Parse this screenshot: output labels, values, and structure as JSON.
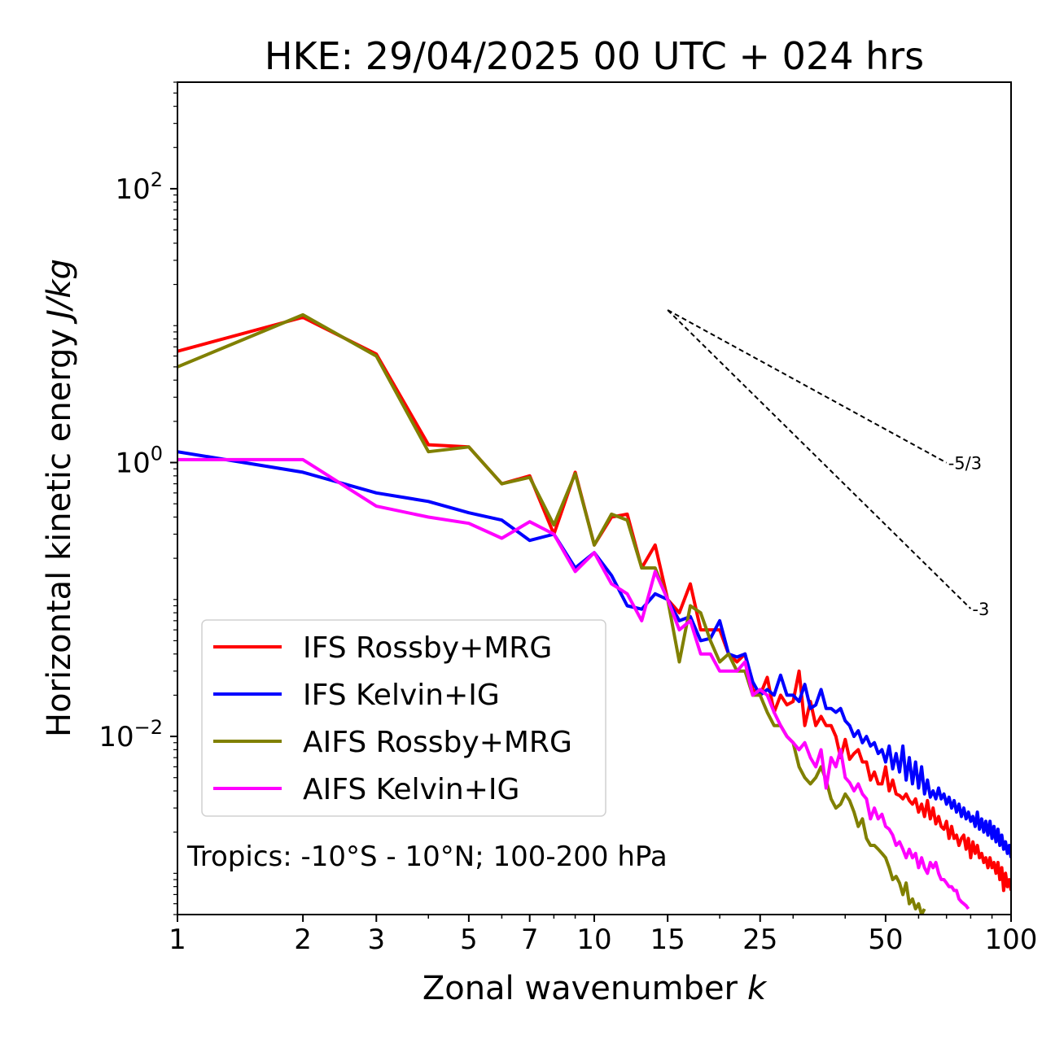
{
  "chart_data": {
    "type": "line",
    "title": "HKE: 29/04/2025 00 UTC + 024 hrs",
    "xlabel": "Zonal wavenumber",
    "xlabel_var": "k",
    "ylabel": "Horizontal kinetic energy",
    "ylabel_unit": "J/kg",
    "xscale": "log",
    "yscale": "log",
    "xlim": [
      1,
      100
    ],
    "ylim": [
      0.0005,
      600
    ],
    "xticks": [
      1,
      2,
      3,
      5,
      7,
      10,
      15,
      25,
      50,
      100
    ],
    "xtick_labels": [
      "1",
      "2",
      "3",
      "5",
      "7",
      "10",
      "15",
      "25",
      "50",
      "100"
    ],
    "yticks": [
      0.01,
      1,
      100
    ],
    "ytick_labels": [
      {
        "base": "10",
        "exp": "−2"
      },
      {
        "base": "10",
        "exp": "0"
      },
      {
        "base": "10",
        "exp": "2"
      }
    ],
    "legend_position": "lower-left",
    "annotation": "Tropics: -10°S - 10°N; 100-200 hPa",
    "reference_lines": [
      {
        "label": "-5/3",
        "slope": -1.6667,
        "x": [
          15,
          70
        ],
        "y_start": 13.0
      },
      {
        "label": "-3",
        "slope": -3,
        "x": [
          15,
          80
        ],
        "y_start": 13.0
      }
    ],
    "series": [
      {
        "name": "IFS Rossby+MRG",
        "color": "#ff0000",
        "x": [
          1,
          2,
          3,
          4,
          5,
          6,
          7,
          8,
          9,
          10,
          11,
          12,
          13,
          14,
          15,
          16,
          17,
          18,
          19,
          20,
          21,
          22,
          23,
          24,
          25,
          26,
          27,
          28,
          29,
          30,
          31,
          32,
          33,
          34,
          35,
          36,
          37,
          38,
          39,
          40,
          41,
          42,
          43,
          44,
          45,
          46,
          47,
          48,
          49,
          50,
          51,
          52,
          53,
          54,
          55,
          56,
          57,
          58,
          59,
          60,
          61,
          62,
          63,
          64,
          65,
          66,
          67,
          68,
          69,
          70,
          71,
          72,
          73,
          74,
          75,
          76,
          77,
          78,
          79,
          80,
          81,
          82,
          83,
          84,
          85,
          86,
          87,
          88,
          89,
          90,
          91,
          92,
          93,
          94,
          95,
          96,
          97,
          98,
          99,
          100
        ],
        "y": [
          6.5,
          11.5,
          6.2,
          1.35,
          1.3,
          0.7,
          0.8,
          0.3,
          0.85,
          0.25,
          0.4,
          0.42,
          0.17,
          0.25,
          0.1,
          0.08,
          0.13,
          0.06,
          0.06,
          0.06,
          0.04,
          0.035,
          0.04,
          0.022,
          0.02,
          0.027,
          0.015,
          0.02,
          0.017,
          0.018,
          0.03,
          0.012,
          0.018,
          0.012,
          0.014,
          0.012,
          0.012,
          0.01,
          0.007,
          0.0095,
          0.0068,
          0.0075,
          0.008,
          0.0065,
          0.0065,
          0.0048,
          0.0055,
          0.0045,
          0.0045,
          0.006,
          0.004,
          0.0048,
          0.0038,
          0.0037,
          0.0035,
          0.0038,
          0.0034,
          0.0032,
          0.0035,
          0.0028,
          0.0032,
          0.0026,
          0.0034,
          0.0025,
          0.003,
          0.0023,
          0.0026,
          0.0022,
          0.0021,
          0.0024,
          0.0018,
          0.0022,
          0.0018,
          0.0019,
          0.0016,
          0.0018,
          0.0019,
          0.0015,
          0.0018,
          0.0013,
          0.0017,
          0.0014,
          0.0016,
          0.0013,
          0.0014,
          0.0012,
          0.0013,
          0.0011,
          0.0013,
          0.0011,
          0.0012,
          0.001,
          0.0012,
          0.0009,
          0.0011,
          0.00075,
          0.001,
          0.0008,
          0.0009,
          0.00075
        ]
      },
      {
        "name": "IFS Kelvin+IG",
        "color": "#0000ff",
        "x": [
          1,
          2,
          3,
          4,
          5,
          6,
          7,
          8,
          9,
          10,
          11,
          12,
          13,
          14,
          15,
          16,
          17,
          18,
          19,
          20,
          21,
          22,
          23,
          24,
          25,
          26,
          27,
          28,
          29,
          30,
          31,
          32,
          33,
          34,
          35,
          36,
          37,
          38,
          39,
          40,
          41,
          42,
          43,
          44,
          45,
          46,
          47,
          48,
          49,
          50,
          51,
          52,
          53,
          54,
          55,
          56,
          57,
          58,
          59,
          60,
          61,
          62,
          63,
          64,
          65,
          66,
          67,
          68,
          69,
          70,
          71,
          72,
          73,
          74,
          75,
          76,
          77,
          78,
          79,
          80,
          81,
          82,
          83,
          84,
          85,
          86,
          87,
          88,
          89,
          90,
          91,
          92,
          93,
          94,
          95,
          96,
          97,
          98,
          99,
          100
        ],
        "y": [
          1.2,
          0.85,
          0.6,
          0.52,
          0.43,
          0.38,
          0.27,
          0.3,
          0.17,
          0.22,
          0.15,
          0.09,
          0.085,
          0.11,
          0.1,
          0.07,
          0.075,
          0.05,
          0.052,
          0.07,
          0.04,
          0.038,
          0.04,
          0.025,
          0.02,
          0.022,
          0.02,
          0.028,
          0.02,
          0.02,
          0.018,
          0.024,
          0.016,
          0.017,
          0.022,
          0.016,
          0.016,
          0.015,
          0.016,
          0.013,
          0.012,
          0.01,
          0.011,
          0.009,
          0.01,
          0.0085,
          0.009,
          0.0075,
          0.008,
          0.0065,
          0.0085,
          0.0058,
          0.0075,
          0.0055,
          0.0085,
          0.0048,
          0.007,
          0.0045,
          0.0065,
          0.0042,
          0.006,
          0.0038,
          0.0048,
          0.0036,
          0.004,
          0.0035,
          0.0042,
          0.0035,
          0.0038,
          0.0032,
          0.0036,
          0.003,
          0.0034,
          0.0028,
          0.0032,
          0.0026,
          0.003,
          0.0025,
          0.0028,
          0.0024,
          0.0026,
          0.0022,
          0.0028,
          0.0021,
          0.0025,
          0.002,
          0.0024,
          0.0019,
          0.0024,
          0.0018,
          0.0022,
          0.0017,
          0.0021,
          0.0016,
          0.0019,
          0.0015,
          0.0017,
          0.0014,
          0.0016,
          0.0013
        ]
      },
      {
        "name": "AIFS Rossby+MRG",
        "color": "#808000",
        "x": [
          1,
          2,
          3,
          4,
          5,
          6,
          7,
          8,
          9,
          10,
          11,
          12,
          13,
          14,
          15,
          16,
          17,
          18,
          19,
          20,
          21,
          22,
          23,
          24,
          25,
          26,
          27,
          28,
          29,
          30,
          31,
          32,
          33,
          34,
          35,
          36,
          37,
          38,
          39,
          40,
          41,
          42,
          43,
          44,
          45,
          46,
          47,
          48,
          49,
          50,
          51,
          52,
          53,
          54,
          55,
          56,
          57,
          58,
          59,
          60,
          61,
          62
        ],
        "y": [
          5.0,
          12.0,
          6.0,
          1.2,
          1.3,
          0.7,
          0.78,
          0.35,
          0.83,
          0.25,
          0.42,
          0.38,
          0.17,
          0.17,
          0.1,
          0.035,
          0.09,
          0.08,
          0.05,
          0.035,
          0.04,
          0.03,
          0.03,
          0.02,
          0.02,
          0.015,
          0.012,
          0.012,
          0.01,
          0.009,
          0.006,
          0.005,
          0.0045,
          0.005,
          0.006,
          0.0048,
          0.0035,
          0.003,
          0.0032,
          0.0038,
          0.0034,
          0.0028,
          0.0022,
          0.0025,
          0.0018,
          0.0016,
          0.0016,
          0.0015,
          0.0014,
          0.0013,
          0.0011,
          0.0009,
          0.00095,
          0.00085,
          0.0007,
          0.00085,
          0.0006,
          0.00065,
          0.00055,
          0.0006,
          0.0005,
          0.00055
        ]
      },
      {
        "name": "AIFS Kelvin+IG",
        "color": "#ff00ff",
        "x": [
          1,
          2,
          3,
          4,
          5,
          6,
          7,
          8,
          9,
          10,
          11,
          12,
          13,
          14,
          15,
          16,
          17,
          18,
          19,
          20,
          21,
          22,
          23,
          24,
          25,
          26,
          27,
          28,
          29,
          30,
          31,
          32,
          33,
          34,
          35,
          36,
          37,
          38,
          39,
          40,
          41,
          42,
          43,
          44,
          45,
          46,
          47,
          48,
          49,
          50,
          51,
          52,
          53,
          54,
          55,
          56,
          57,
          58,
          59,
          60,
          61,
          62,
          63,
          64,
          65,
          66,
          67,
          68,
          69,
          70,
          71,
          72,
          73,
          74,
          75,
          76,
          77,
          78,
          79
        ],
        "y": [
          1.05,
          1.05,
          0.48,
          0.4,
          0.36,
          0.28,
          0.37,
          0.3,
          0.16,
          0.22,
          0.13,
          0.11,
          0.07,
          0.16,
          0.1,
          0.06,
          0.07,
          0.04,
          0.04,
          0.03,
          0.03,
          0.03,
          0.035,
          0.02,
          0.022,
          0.02,
          0.015,
          0.012,
          0.01,
          0.009,
          0.008,
          0.009,
          0.007,
          0.006,
          0.008,
          0.0042,
          0.007,
          0.006,
          0.008,
          0.005,
          0.0046,
          0.004,
          0.0045,
          0.0038,
          0.0035,
          0.0025,
          0.003,
          0.0025,
          0.0027,
          0.0022,
          0.0021,
          0.0019,
          0.0016,
          0.0017,
          0.0015,
          0.0013,
          0.0015,
          0.0013,
          0.0014,
          0.0011,
          0.0013,
          0.0011,
          0.001,
          0.0012,
          0.0011,
          0.0012,
          0.001,
          0.0009,
          0.0009,
          0.00085,
          0.0008,
          0.0008,
          0.00075,
          0.00075,
          0.00065,
          0.00062,
          0.0006,
          0.00058,
          0.00055
        ]
      }
    ]
  }
}
